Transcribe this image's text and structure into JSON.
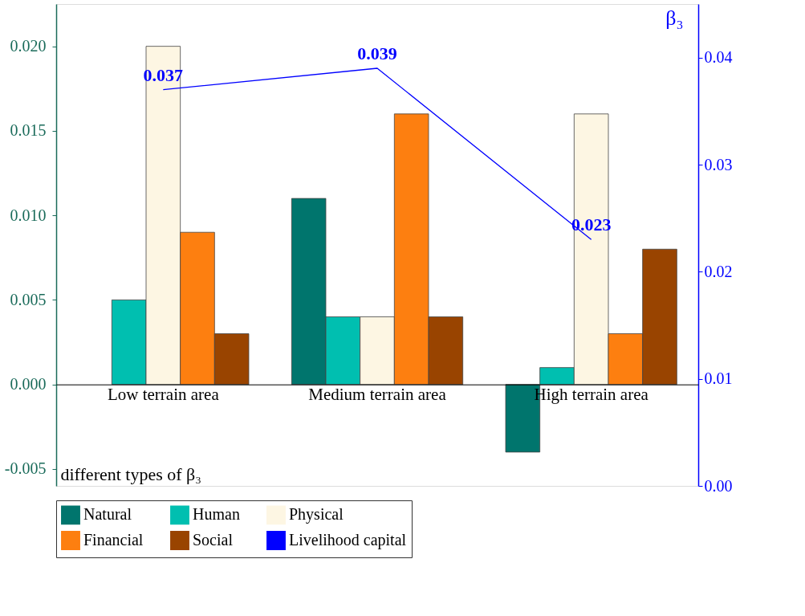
{
  "chart_data": {
    "type": "bar",
    "categories": [
      "Low terrain area",
      "Medium terrain area",
      "High terrain area"
    ],
    "ylabel": "different types of β₃",
    "y2label": "β₃",
    "series": [
      {
        "name": "Natural",
        "color": "#00756d",
        "values": [
          null,
          0.011,
          -0.004
        ]
      },
      {
        "name": "Human",
        "color": "#00bfb0",
        "values": [
          0.005,
          0.004,
          0.001
        ]
      },
      {
        "name": "Physical",
        "color": "#fdf6e3",
        "values": [
          0.02,
          0.004,
          0.016
        ]
      },
      {
        "name": "Financial",
        "color": "#fd7f10",
        "values": [
          0.009,
          0.016,
          0.003
        ]
      },
      {
        "name": "Social",
        "color": "#994400",
        "values": [
          0.003,
          0.004,
          0.008
        ]
      },
      {
        "name": "Livelihood capital",
        "type": "line",
        "axis": "y2",
        "color": "#0000ff",
        "values": [
          0.037,
          0.039,
          0.023
        ],
        "value_labels": [
          "0.037",
          "0.039",
          "0.023"
        ]
      }
    ],
    "ylim": [
      -0.006,
      0.0225
    ],
    "yticks": [
      {
        "value": -0.005,
        "label": "-0.005"
      },
      {
        "value": 0,
        "label": "0.000"
      },
      {
        "value": 0.005,
        "label": "0.005"
      },
      {
        "value": 0.01,
        "label": "0.010"
      },
      {
        "value": 0.015,
        "label": "0.015"
      },
      {
        "value": 0.02,
        "label": "0.020"
      }
    ],
    "y2lim": [
      0,
      0.045
    ],
    "y2ticks": [
      {
        "value": 0,
        "label": "0.00"
      },
      {
        "value": 0.01,
        "label": "0.01"
      },
      {
        "value": 0.02,
        "label": "0.02"
      },
      {
        "value": 0.03,
        "label": "0.03"
      },
      {
        "value": 0.04,
        "label": "0.04"
      }
    ],
    "grid": false,
    "legend": "bottom"
  }
}
